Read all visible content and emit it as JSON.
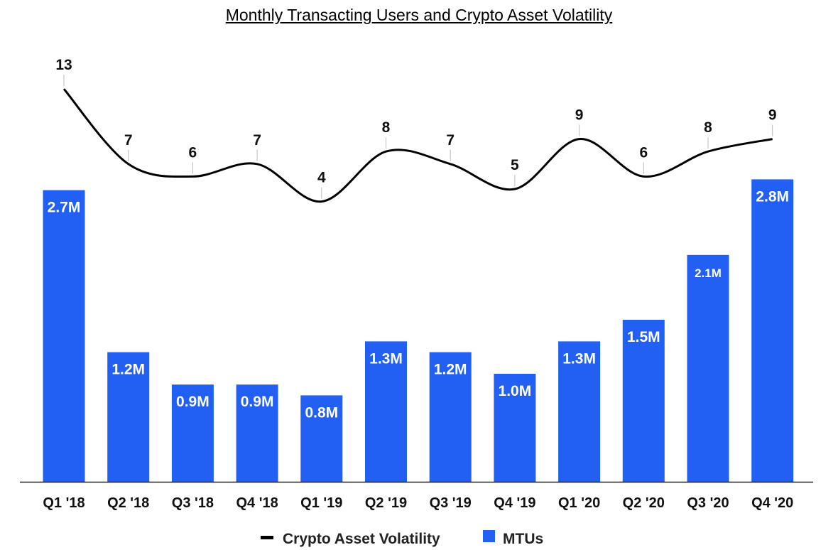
{
  "chart_data": {
    "type": "bar",
    "title": "Monthly Transacting Users and Crypto Asset Volatility",
    "categories": [
      "Q1 '18",
      "Q2 '18",
      "Q3 '18",
      "Q4 '18",
      "Q1 '19",
      "Q2 '19",
      "Q3 '19",
      "Q4 '19",
      "Q1 '20",
      "Q2 '20",
      "Q3 '20",
      "Q4 '20"
    ],
    "series": [
      {
        "name": "MTUs",
        "type": "bar",
        "color": "#2160f3",
        "values": [
          2.7,
          1.2,
          0.9,
          0.9,
          0.8,
          1.3,
          1.2,
          1.0,
          1.3,
          1.5,
          2.1,
          2.8
        ],
        "labels": [
          "2.7M",
          "1.2M",
          "0.9M",
          "0.9M",
          "0.8M",
          "1.3M",
          "1.2M",
          "1.0M",
          "1.3M",
          "1.5M",
          "2.1M",
          "2.8M"
        ]
      },
      {
        "name": "Crypto Asset Volatility",
        "type": "line",
        "color": "#000000",
        "values": [
          13,
          7,
          6,
          7,
          4,
          8,
          7,
          5,
          9,
          6,
          8,
          9
        ],
        "labels": [
          "13",
          "7",
          "6",
          "7",
          "4",
          "8",
          "7",
          "5",
          "9",
          "6",
          "8",
          "9"
        ]
      }
    ],
    "xlabel": "",
    "ylabel": "",
    "grid": false,
    "legend": "bottom-center"
  }
}
